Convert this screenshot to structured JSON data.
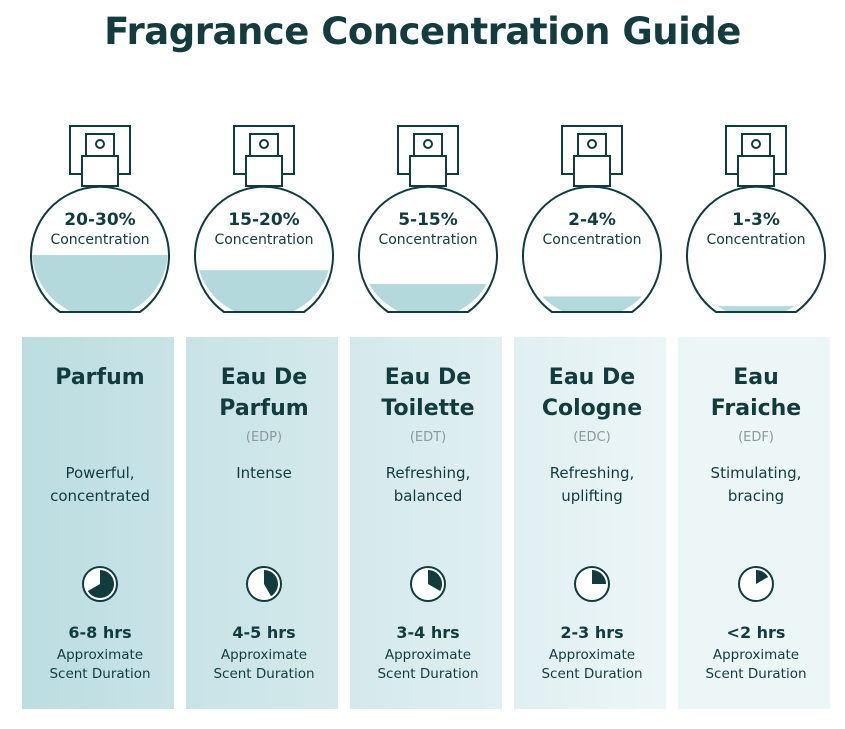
{
  "title": "Fragrance Concentration Guide",
  "colors": {
    "ink": "#123b3e",
    "liquid": "#b3d9dd",
    "panel_start": "#bcdde1",
    "panel_end": "#eef7f8"
  },
  "columns": [
    {
      "pct": "20-30%",
      "conc": "Concentration",
      "fill": 0.42,
      "name": [
        "Parfum"
      ],
      "abbr": "",
      "desc": [
        "Powerful,",
        "concentrated"
      ],
      "hours": "6-8 hrs",
      "clock_fraction": 0.667,
      "approx": [
        "Approximate",
        "Scent Duration"
      ]
    },
    {
      "pct": "15-20%",
      "conc": "Concentration",
      "fill": 0.31,
      "name": [
        "Eau De",
        "Parfum"
      ],
      "abbr": "(EDP)",
      "desc": [
        "Intense",
        ""
      ],
      "hours": "4-5 hrs",
      "clock_fraction": 0.417,
      "approx": [
        "Approximate",
        "Scent Duration"
      ]
    },
    {
      "pct": "5-15%",
      "conc": "Concentration",
      "fill": 0.21,
      "name": [
        "Eau De",
        "Toilette"
      ],
      "abbr": "(EDT)",
      "desc": [
        "Refreshing,",
        "balanced"
      ],
      "hours": "3-4 hrs",
      "clock_fraction": 0.333,
      "approx": [
        "Approximate",
        "Scent Duration"
      ]
    },
    {
      "pct": "2-4%",
      "conc": "Concentration",
      "fill": 0.12,
      "name": [
        "Eau De",
        "Cologne"
      ],
      "abbr": "(EDC)",
      "desc": [
        "Refreshing,",
        "uplifting"
      ],
      "hours": "2-3 hrs",
      "clock_fraction": 0.25,
      "approx": [
        "Approximate",
        "Scent Duration"
      ]
    },
    {
      "pct": "1-3%",
      "conc": "Concentration",
      "fill": 0.05,
      "name": [
        "Eau",
        "Fraiche"
      ],
      "abbr": "(EDF)",
      "desc": [
        "Stimulating,",
        "bracing"
      ],
      "hours": "<2 hrs",
      "clock_fraction": 0.167,
      "approx": [
        "Approximate",
        "Scent Duration"
      ]
    }
  ]
}
